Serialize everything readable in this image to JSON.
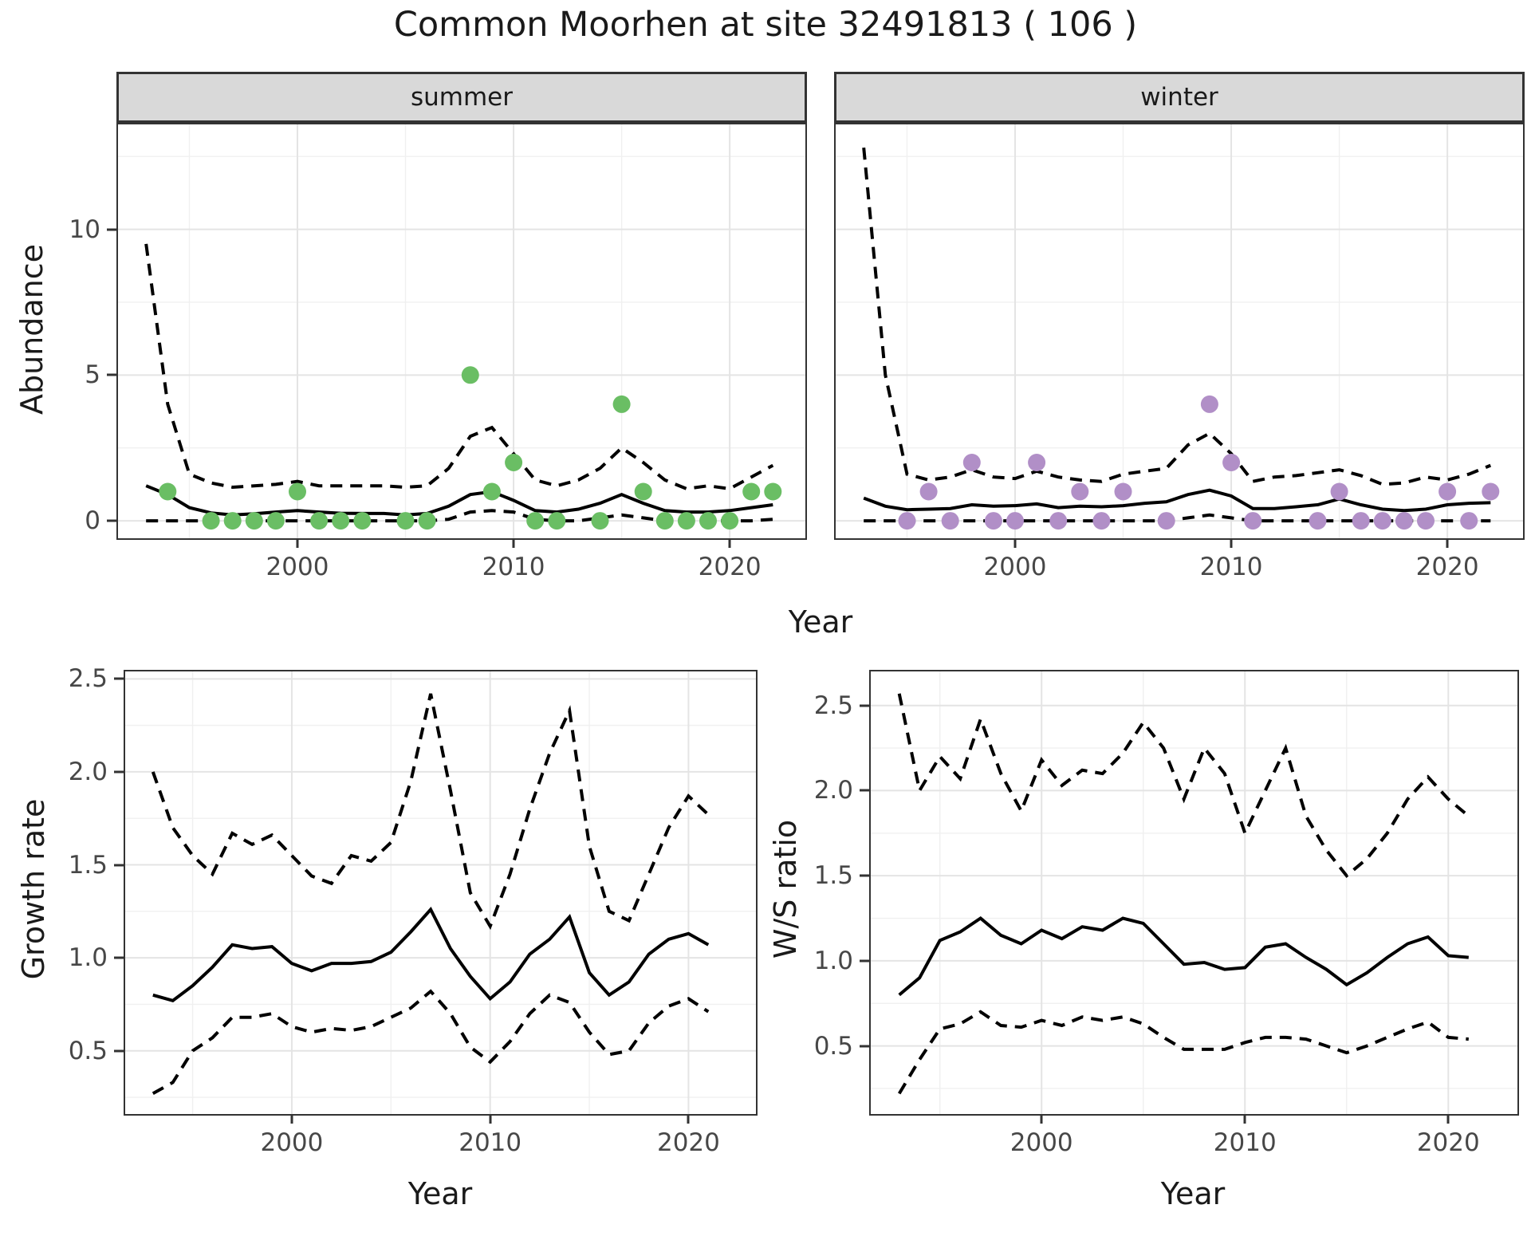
{
  "title": "Common Moorhen at site 32491813 ( 106 )",
  "facets": {
    "summer": "summer",
    "winter": "winter"
  },
  "axes": {
    "abundance_label": "Abundance",
    "growth_label": "Growth rate",
    "ws_label": "W/S ratio",
    "year_label_top": "Year",
    "year_label_growth": "Year",
    "year_label_ws": "Year"
  },
  "colors": {
    "line": "#000000",
    "summer_point": "#6abe64",
    "winter_point": "#b18fc7",
    "grid_major": "#e4e4e4",
    "grid_minor": "#f0f0f0",
    "panel_border": "#333333",
    "tick_text": "#474747",
    "strip_bg": "#d9d9d9"
  },
  "chart_data": [
    {
      "id": "summer",
      "type": "line",
      "title": "summer",
      "xlabel": "Year",
      "ylabel": "Abundance",
      "x_domain": [
        1991.7,
        2023.5
      ],
      "y_domain": [
        -0.6,
        13.6
      ],
      "x_major": [
        2000,
        2010,
        2020
      ],
      "x_minor": [
        1995,
        2005,
        2015
      ],
      "y_major": [
        0,
        5,
        10
      ],
      "y_minor": [
        2.5,
        7.5,
        12.5
      ],
      "x_ticks": [
        {
          "v": 2000,
          "label": "2000"
        },
        {
          "v": 2010,
          "label": "2010"
        },
        {
          "v": 2020,
          "label": "2020"
        }
      ],
      "y_ticks": [
        {
          "v": 0,
          "label": "0"
        },
        {
          "v": 5,
          "label": "5"
        },
        {
          "v": 10,
          "label": "10"
        }
      ],
      "series": {
        "start": 1993,
        "median": [
          1.2,
          0.9,
          0.45,
          0.27,
          0.2,
          0.24,
          0.3,
          0.35,
          0.3,
          0.26,
          0.25,
          0.25,
          0.2,
          0.25,
          0.5,
          0.9,
          1.0,
          0.7,
          0.35,
          0.3,
          0.4,
          0.6,
          0.9,
          0.6,
          0.35,
          0.3,
          0.3,
          0.35,
          0.45,
          0.55
        ],
        "upper": [
          9.5,
          4.0,
          1.6,
          1.3,
          1.15,
          1.2,
          1.25,
          1.35,
          1.2,
          1.2,
          1.2,
          1.2,
          1.15,
          1.2,
          1.8,
          2.9,
          3.2,
          2.3,
          1.4,
          1.2,
          1.4,
          1.8,
          2.5,
          2.0,
          1.4,
          1.1,
          1.2,
          1.1,
          1.5,
          1.9
        ],
        "lower": [
          0,
          0,
          0,
          0,
          0,
          0,
          0,
          0,
          0,
          0,
          0,
          0,
          0,
          0,
          0.05,
          0.3,
          0.35,
          0.3,
          0.05,
          0,
          0,
          0.1,
          0.2,
          0.1,
          0,
          0,
          0,
          0,
          0,
          0.05
        ]
      },
      "points": [
        [
          1994,
          1
        ],
        [
          1996,
          0
        ],
        [
          1997,
          0
        ],
        [
          1998,
          0
        ],
        [
          1999,
          0
        ],
        [
          2000,
          1
        ],
        [
          2001,
          0
        ],
        [
          2002,
          0
        ],
        [
          2003,
          0
        ],
        [
          2005,
          0
        ],
        [
          2006,
          0
        ],
        [
          2008,
          5
        ],
        [
          2009,
          1
        ],
        [
          2010,
          2
        ],
        [
          2011,
          0
        ],
        [
          2012,
          0
        ],
        [
          2014,
          0
        ],
        [
          2015,
          4
        ],
        [
          2016,
          1
        ],
        [
          2017,
          0
        ],
        [
          2018,
          0
        ],
        [
          2019,
          0
        ],
        [
          2020,
          0
        ],
        [
          2021,
          1
        ],
        [
          2022,
          1
        ]
      ],
      "point_color": "#6abe64"
    },
    {
      "id": "winter",
      "type": "line",
      "title": "winter",
      "xlabel": "Year",
      "ylabel": "Abundance",
      "x_domain": [
        1991.7,
        2023.5
      ],
      "y_domain": [
        -0.6,
        13.6
      ],
      "x_major": [
        2000,
        2010,
        2020
      ],
      "x_minor": [
        1995,
        2005,
        2015
      ],
      "y_major": [
        0,
        5,
        10
      ],
      "y_minor": [
        2.5,
        7.5,
        12.5
      ],
      "x_ticks": [
        {
          "v": 2000,
          "label": "2000"
        },
        {
          "v": 2010,
          "label": "2010"
        },
        {
          "v": 2020,
          "label": "2020"
        }
      ],
      "y_ticks": [],
      "series": {
        "start": 1993,
        "median": [
          0.78,
          0.5,
          0.38,
          0.4,
          0.42,
          0.55,
          0.5,
          0.52,
          0.58,
          0.45,
          0.5,
          0.48,
          0.52,
          0.6,
          0.65,
          0.9,
          1.05,
          0.85,
          0.42,
          0.42,
          0.48,
          0.55,
          0.75,
          0.55,
          0.4,
          0.35,
          0.4,
          0.55,
          0.6,
          0.62
        ],
        "upper": [
          12.8,
          5.0,
          1.6,
          1.4,
          1.5,
          1.75,
          1.5,
          1.45,
          1.7,
          1.5,
          1.4,
          1.35,
          1.6,
          1.7,
          1.8,
          2.6,
          3.0,
          2.3,
          1.35,
          1.5,
          1.55,
          1.65,
          1.75,
          1.55,
          1.25,
          1.3,
          1.5,
          1.4,
          1.6,
          1.9
        ],
        "lower": [
          0,
          0,
          0,
          0,
          0,
          0,
          0,
          0,
          0,
          0,
          0,
          0,
          0,
          0,
          0,
          0.1,
          0.2,
          0.1,
          0,
          0,
          0,
          0,
          0,
          0,
          0,
          0,
          0,
          0,
          0,
          0
        ]
      },
      "points": [
        [
          1995,
          0
        ],
        [
          1996,
          1
        ],
        [
          1997,
          0
        ],
        [
          1998,
          2
        ],
        [
          1999,
          0
        ],
        [
          2000,
          0
        ],
        [
          2001,
          2
        ],
        [
          2002,
          0
        ],
        [
          2003,
          1
        ],
        [
          2004,
          0
        ],
        [
          2005,
          1
        ],
        [
          2007,
          0
        ],
        [
          2009,
          4
        ],
        [
          2010,
          2
        ],
        [
          2011,
          0
        ],
        [
          2014,
          0
        ],
        [
          2015,
          1
        ],
        [
          2016,
          0
        ],
        [
          2017,
          0
        ],
        [
          2018,
          0
        ],
        [
          2019,
          0
        ],
        [
          2020,
          1
        ],
        [
          2021,
          0
        ],
        [
          2022,
          1
        ]
      ],
      "point_color": "#b18fc7"
    },
    {
      "id": "growth",
      "type": "line",
      "title": "",
      "xlabel": "Year",
      "ylabel": "Growth rate",
      "x_domain": [
        1991.6,
        2023.4
      ],
      "y_domain": [
        0.16,
        2.54
      ],
      "x_major": [
        2000,
        2010,
        2020
      ],
      "x_minor": [
        1995,
        2005,
        2015
      ],
      "y_major": [
        0.5,
        1.0,
        1.5,
        2.0,
        2.5
      ],
      "y_minor": [
        0.25,
        0.75,
        1.25,
        1.75,
        2.25
      ],
      "x_ticks": [
        {
          "v": 2000,
          "label": "2000"
        },
        {
          "v": 2010,
          "label": "2010"
        },
        {
          "v": 2020,
          "label": "2020"
        }
      ],
      "y_ticks": [
        {
          "v": 0.5,
          "label": "0.5"
        },
        {
          "v": 1.0,
          "label": "1.0"
        },
        {
          "v": 1.5,
          "label": "1.5"
        },
        {
          "v": 2.0,
          "label": "2.0"
        },
        {
          "v": 2.5,
          "label": "2.5"
        }
      ],
      "series": {
        "start": 1993,
        "median": [
          0.8,
          0.77,
          0.85,
          0.95,
          1.07,
          1.05,
          1.06,
          0.97,
          0.93,
          0.97,
          0.97,
          0.98,
          1.03,
          1.14,
          1.26,
          1.05,
          0.9,
          0.78,
          0.87,
          1.02,
          1.1,
          1.22,
          0.92,
          0.8,
          0.87,
          1.02,
          1.1,
          1.13,
          1.07
        ],
        "upper": [
          2.0,
          1.7,
          1.55,
          1.45,
          1.67,
          1.61,
          1.66,
          1.55,
          1.44,
          1.4,
          1.55,
          1.52,
          1.62,
          1.95,
          2.42,
          1.9,
          1.35,
          1.17,
          1.45,
          1.8,
          2.1,
          2.33,
          1.6,
          1.25,
          1.2,
          1.45,
          1.7,
          1.87,
          1.77
        ],
        "lower": [
          0.27,
          0.33,
          0.5,
          0.57,
          0.68,
          0.68,
          0.7,
          0.63,
          0.6,
          0.62,
          0.61,
          0.63,
          0.68,
          0.73,
          0.82,
          0.7,
          0.52,
          0.44,
          0.55,
          0.7,
          0.8,
          0.76,
          0.6,
          0.48,
          0.5,
          0.65,
          0.74,
          0.78,
          0.71
        ]
      },
      "points": [],
      "point_color": "#000000"
    },
    {
      "id": "ws",
      "type": "line",
      "title": "",
      "xlabel": "Year",
      "ylabel": "W/S ratio",
      "x_domain": [
        1991.6,
        2023.4
      ],
      "y_domain": [
        0.1,
        2.7
      ],
      "x_major": [
        2000,
        2010,
        2020
      ],
      "x_minor": [
        1995,
        2005,
        2015
      ],
      "y_major": [
        0.5,
        1.0,
        1.5,
        2.0,
        2.5
      ],
      "y_minor": [
        0.25,
        0.75,
        1.25,
        1.75,
        2.25
      ],
      "x_ticks": [
        {
          "v": 2000,
          "label": "2000"
        },
        {
          "v": 2010,
          "label": "2010"
        },
        {
          "v": 2020,
          "label": "2020"
        }
      ],
      "y_ticks": [
        {
          "v": 0.5,
          "label": "0.5"
        },
        {
          "v": 1.0,
          "label": "1.0"
        },
        {
          "v": 1.5,
          "label": "1.5"
        },
        {
          "v": 2.0,
          "label": "2.0"
        },
        {
          "v": 2.5,
          "label": "2.5"
        }
      ],
      "series": {
        "start": 1993,
        "median": [
          0.8,
          0.9,
          1.12,
          1.17,
          1.25,
          1.15,
          1.1,
          1.18,
          1.13,
          1.2,
          1.18,
          1.25,
          1.22,
          1.1,
          0.98,
          0.99,
          0.95,
          0.96,
          1.08,
          1.1,
          1.02,
          0.95,
          0.86,
          0.93,
          1.02,
          1.1,
          1.14,
          1.03,
          1.02
        ],
        "upper": [
          2.57,
          2.0,
          2.2,
          2.07,
          2.42,
          2.1,
          1.88,
          2.18,
          2.03,
          2.12,
          2.1,
          2.22,
          2.4,
          2.25,
          1.95,
          2.25,
          2.1,
          1.75,
          2.0,
          2.25,
          1.85,
          1.65,
          1.5,
          1.6,
          1.75,
          1.95,
          2.08,
          1.95,
          1.85
        ],
        "lower": [
          0.22,
          0.42,
          0.6,
          0.63,
          0.7,
          0.62,
          0.61,
          0.65,
          0.62,
          0.67,
          0.65,
          0.67,
          0.63,
          0.55,
          0.48,
          0.48,
          0.48,
          0.52,
          0.55,
          0.55,
          0.54,
          0.5,
          0.46,
          0.5,
          0.55,
          0.6,
          0.64,
          0.55,
          0.54
        ]
      },
      "points": [],
      "point_color": "#000000"
    }
  ],
  "style": {
    "line_width": 4,
    "dash_pattern": "15 10",
    "point_radius": 11,
    "grid_major_width": 2,
    "grid_minor_width": 1.4
  }
}
